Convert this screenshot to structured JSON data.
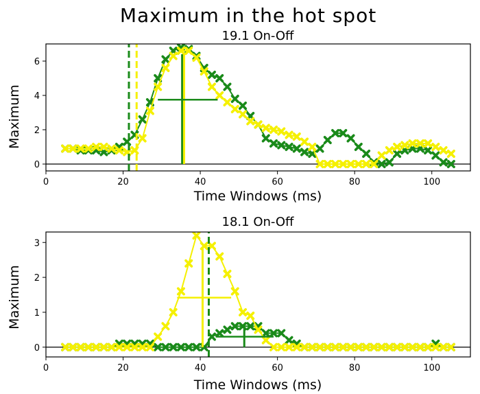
{
  "figure": {
    "title": "Maximum in the hot spot"
  },
  "colors": {
    "green": "#1a8a1a",
    "yellow": "#f5f000"
  },
  "chart_data": [
    {
      "type": "line",
      "title": "19.1 On-Off",
      "xlabel": "Time Windows (ms)",
      "ylabel": "Maximum",
      "xlim": [
        0,
        110
      ],
      "ylim": [
        -0.4,
        7
      ],
      "xticks": [
        "0",
        "20",
        "40",
        "60",
        "80",
        "100"
      ],
      "yticks": [
        "0",
        "2",
        "4",
        "6"
      ],
      "grid": false,
      "series": [
        {
          "color": "green",
          "marker": "x",
          "x": [
            5,
            7,
            9,
            11,
            13,
            15,
            17,
            19,
            21,
            23,
            25,
            27,
            29,
            31,
            33,
            35,
            37,
            39,
            41,
            43,
            45,
            47,
            49,
            51,
            53,
            55,
            57,
            59,
            61,
            63,
            65,
            67,
            69,
            71,
            73,
            75,
            77,
            79,
            81,
            83,
            85,
            87,
            89,
            91,
            93,
            95,
            97,
            99,
            101,
            103,
            105
          ],
          "y": [
            0.9,
            0.9,
            0.8,
            0.8,
            0.8,
            0.7,
            0.8,
            1.0,
            1.3,
            1.7,
            2.6,
            3.6,
            5.0,
            6.1,
            6.6,
            6.8,
            6.7,
            6.3,
            5.6,
            5.2,
            5.0,
            4.5,
            3.8,
            3.4,
            2.8,
            2.3,
            1.5,
            1.2,
            1.1,
            1.0,
            0.9,
            0.7,
            0.6,
            0.9,
            1.4,
            1.8,
            1.8,
            1.5,
            1.0,
            0.6,
            0.1,
            0.0,
            0.1,
            0.6,
            0.8,
            0.9,
            0.9,
            0.8,
            0.5,
            0.1,
            0.0
          ]
        },
        {
          "color": "yellow",
          "marker": "x",
          "x": [
            5,
            7,
            9,
            11,
            13,
            15,
            17,
            19,
            21,
            23,
            25,
            27,
            29,
            31,
            33,
            35,
            37,
            39,
            41,
            43,
            45,
            47,
            49,
            51,
            53,
            55,
            57,
            59,
            61,
            63,
            65,
            67,
            69,
            71,
            73,
            75,
            77,
            79,
            81,
            83,
            85,
            87,
            89,
            91,
            93,
            95,
            97,
            99,
            101,
            103,
            105
          ],
          "y": [
            0.9,
            0.9,
            0.9,
            0.9,
            1.0,
            1.0,
            0.9,
            0.8,
            0.7,
            0.8,
            1.5,
            3.1,
            4.5,
            5.6,
            6.3,
            6.6,
            6.6,
            6.2,
            5.4,
            4.5,
            4.0,
            3.6,
            3.2,
            2.9,
            2.5,
            2.3,
            2.1,
            2.0,
            1.9,
            1.7,
            1.6,
            1.3,
            1.0,
            0.0,
            0.0,
            0.0,
            0.0,
            0.0,
            0.0,
            0.0,
            0.0,
            0.5,
            0.8,
            1.0,
            1.1,
            1.2,
            1.2,
            1.2,
            1.0,
            0.8,
            0.6
          ]
        }
      ],
      "vlines": [
        {
          "color": "green",
          "x": 21.5,
          "style": "dashed"
        },
        {
          "color": "yellow",
          "x": 23.5,
          "style": "dashed"
        },
        {
          "color": "green",
          "x": 35.3,
          "style": "solid",
          "y0": 0,
          "y1": 6.4
        },
        {
          "color": "yellow",
          "x": 35.8,
          "style": "solid",
          "y0": 0,
          "y1": 6.4
        }
      ],
      "hlines": [
        {
          "color": "green",
          "y": 3.75,
          "x0": 29,
          "x1": 44.5
        }
      ],
      "baseline": 0
    },
    {
      "type": "line",
      "title": "18.1 On-Off",
      "xlabel": "Time Windows (ms)",
      "ylabel": "Maximum",
      "xlim": [
        0,
        110
      ],
      "ylim": [
        -0.28,
        3.3
      ],
      "xticks": [
        "0",
        "20",
        "40",
        "60",
        "80",
        "100"
      ],
      "yticks": [
        "0",
        "1",
        "2",
        "3"
      ],
      "grid": false,
      "series": [
        {
          "color": "green",
          "marker": "x",
          "x": [
            5,
            7,
            9,
            11,
            13,
            15,
            17,
            19,
            21,
            23,
            25,
            27,
            29,
            31,
            33,
            35,
            37,
            39,
            41,
            43,
            45,
            47,
            49,
            51,
            53,
            55,
            57,
            59,
            61,
            63,
            65,
            67,
            69,
            71,
            73,
            75,
            77,
            79,
            81,
            83,
            85,
            87,
            89,
            91,
            93,
            95,
            97,
            99,
            101,
            103,
            105
          ],
          "y": [
            0,
            0,
            0,
            0,
            0,
            0,
            0,
            0.1,
            0.1,
            0.1,
            0.1,
            0.1,
            0,
            0,
            0,
            0,
            0,
            0,
            0,
            0.3,
            0.4,
            0.5,
            0.6,
            0.6,
            0.6,
            0.6,
            0.4,
            0.4,
            0.4,
            0.2,
            0.1,
            0,
            0,
            0,
            0,
            0,
            0,
            0,
            0,
            0,
            0,
            0,
            0,
            0,
            0,
            0,
            0,
            0,
            0.1,
            0,
            0
          ]
        },
        {
          "color": "yellow",
          "marker": "x",
          "x": [
            5,
            7,
            9,
            11,
            13,
            15,
            17,
            19,
            21,
            23,
            25,
            27,
            29,
            31,
            33,
            35,
            37,
            39,
            41,
            43,
            45,
            47,
            49,
            51,
            53,
            55,
            57,
            59,
            61,
            63,
            65,
            67,
            69,
            71,
            73,
            75,
            77,
            79,
            81,
            83,
            85,
            87,
            89,
            91,
            93,
            95,
            97,
            99,
            101,
            103,
            105
          ],
          "y": [
            0,
            0,
            0,
            0,
            0,
            0,
            0,
            0,
            0,
            0,
            0,
            0,
            0.3,
            0.6,
            1.0,
            1.6,
            2.4,
            3.2,
            2.9,
            2.9,
            2.6,
            2.1,
            1.6,
            1.0,
            0.9,
            0.5,
            0.2,
            0,
            0,
            0,
            0,
            0,
            0,
            0,
            0,
            0,
            0,
            0,
            0,
            0,
            0,
            0,
            0,
            0,
            0,
            0,
            0,
            0,
            0,
            0,
            0
          ]
        }
      ],
      "vlines": [
        {
          "color": "green",
          "x": 42.2,
          "style": "dashed"
        },
        {
          "color": "yellow",
          "x": 40.6,
          "style": "solid",
          "y0": 0,
          "y1": 2.85
        },
        {
          "color": "green",
          "x": 51.4,
          "style": "solid",
          "y0": 0,
          "y1": 0.55
        }
      ],
      "hlines": [
        {
          "color": "yellow",
          "y": 1.42,
          "x0": 34,
          "x1": 48
        },
        {
          "color": "green",
          "y": 0.3,
          "x0": 44,
          "x1": 59
        }
      ],
      "baseline": 0
    }
  ]
}
